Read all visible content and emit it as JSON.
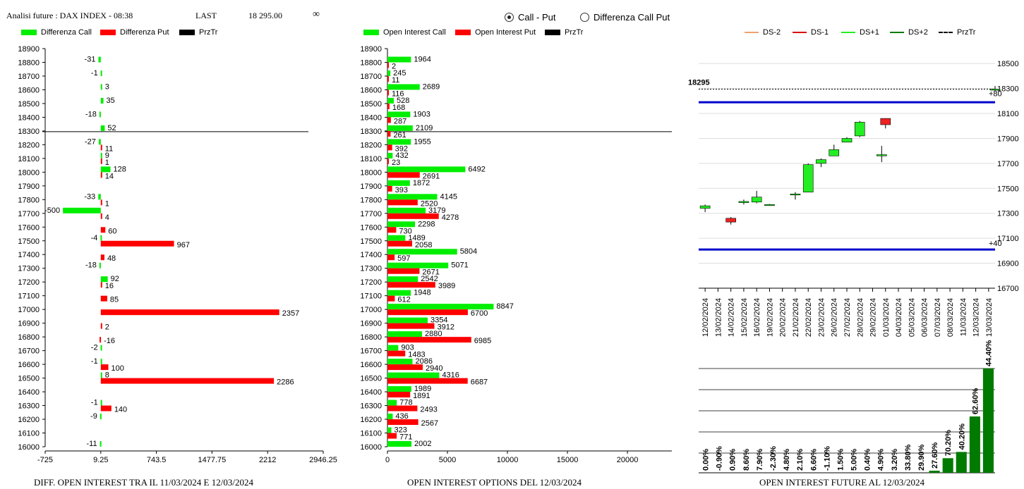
{
  "header": {
    "title": "Analisi future : DAX INDEX - 08:38",
    "last_label": "LAST",
    "last_value": "18 295.00",
    "infinity_symbol": "∞"
  },
  "view_toggle": {
    "options": [
      "Call - Put",
      "Differenza Call Put"
    ],
    "selected": "Call - Put"
  },
  "colors": {
    "green": "#00ee00",
    "red": "#ff0000",
    "black": "#000000",
    "blue": "#0000cc",
    "dark_green": "#007a00",
    "orange": "#f0a070"
  },
  "footers": {
    "left": "DIFF. OPEN INTEREST TRA IL 11/03/2024 E 12/03/2024",
    "middle": "OPEN INTEREST OPTIONS DEL 12/03/2024",
    "right": "OPEN INTEREST FUTURE AL 12/03/2024"
  },
  "chart_data": [
    {
      "id": "diff",
      "type": "bar",
      "orientation": "horizontal",
      "legend": [
        "Differenza Call",
        "Differenza Put",
        "PrzTr"
      ],
      "strikes": [
        18900,
        18800,
        18700,
        18600,
        18500,
        18400,
        18300,
        18200,
        18100,
        18000,
        17900,
        17800,
        17700,
        17600,
        17500,
        17400,
        17300,
        17200,
        17100,
        17000,
        16900,
        16800,
        16700,
        16600,
        16500,
        16400,
        16300,
        16200,
        16100,
        16000
      ],
      "series": [
        {
          "name": "Differenza Call",
          "values": [
            null,
            -31,
            -1,
            3,
            35,
            -18,
            52,
            -27,
            9,
            128,
            null,
            -33,
            -500,
            null,
            -4,
            null,
            -18,
            92,
            null,
            null,
            null,
            null,
            -2,
            -1,
            8,
            null,
            -1,
            -9,
            null,
            -11
          ]
        },
        {
          "name": "Differenza Put",
          "values": [
            null,
            null,
            null,
            null,
            null,
            null,
            null,
            11,
            1,
            14,
            null,
            1,
            4,
            60,
            967,
            48,
            null,
            16,
            85,
            2357,
            2,
            -16,
            null,
            100,
            2286,
            null,
            140,
            null,
            null,
            null
          ]
        }
      ],
      "price_line": 18295,
      "x_ticks": [
        "-725",
        "9.25",
        "743.5",
        "1477.75",
        "2212",
        "2946.25"
      ],
      "xlim": [
        -725,
        2946.25
      ]
    },
    {
      "id": "oi",
      "type": "bar",
      "orientation": "horizontal",
      "legend": [
        "Open Interest Call",
        "Open Interest Put",
        "PrzTr"
      ],
      "strikes": [
        18900,
        18800,
        18700,
        18600,
        18500,
        18400,
        18300,
        18200,
        18100,
        18000,
        17900,
        17800,
        17700,
        17600,
        17500,
        17400,
        17300,
        17200,
        17100,
        17000,
        16900,
        16800,
        16700,
        16600,
        16500,
        16400,
        16300,
        16200,
        16100,
        16000
      ],
      "series": [
        {
          "name": "Open Interest Call",
          "values": [
            null,
            1964,
            245,
            2689,
            528,
            1903,
            2109,
            1955,
            432,
            6492,
            1872,
            4145,
            3179,
            2298,
            1489,
            5804,
            5071,
            2542,
            1948,
            8847,
            3354,
            2880,
            903,
            2086,
            4316,
            1989,
            778,
            436,
            323,
            2002
          ]
        },
        {
          "name": "Open Interest Put",
          "values": [
            null,
            2,
            11,
            116,
            168,
            287,
            261,
            392,
            23,
            2691,
            393,
            2520,
            4278,
            730,
            2058,
            597,
            2671,
            3989,
            612,
            6700,
            3912,
            6985,
            1483,
            2940,
            6687,
            1891,
            2493,
            2567,
            771,
            null
          ]
        }
      ],
      "price_line": 18295,
      "x_ticks": [
        "0",
        "5000",
        "10000",
        "15000",
        "20000"
      ],
      "xlim": [
        0,
        23700
      ]
    },
    {
      "id": "candles",
      "type": "candlestick",
      "legend": [
        "DS-2",
        "DS-1",
        "DS+1",
        "DS+2",
        "PrzTr"
      ],
      "dates": [
        "12/02/2024",
        "13/02/2024",
        "14/02/2024",
        "15/02/2024",
        "16/02/2024",
        "19/02/2024",
        "20/02/2024",
        "21/02/2024",
        "22/02/2024",
        "23/02/2024",
        "26/02/2024",
        "27/02/2024",
        "28/02/2024",
        "29/02/2024",
        "01/03/2024",
        "04/03/2024",
        "05/03/2024",
        "06/03/2024",
        "07/03/2024",
        "08/03/2024",
        "11/03/2024",
        "12/03/2024",
        "13/03/2024"
      ],
      "ohlc": [
        [
          17340,
          17370,
          17310,
          17360
        ],
        [
          null,
          null,
          null,
          null
        ],
        [
          17260,
          17270,
          17210,
          17230
        ],
        [
          17385,
          17410,
          17370,
          17395
        ],
        [
          17390,
          17480,
          17380,
          17430
        ],
        [
          17370,
          17375,
          17365,
          17370
        ],
        [
          null,
          null,
          null,
          null
        ],
        [
          17450,
          17470,
          17410,
          17455
        ],
        [
          17470,
          17700,
          17470,
          17690
        ],
        [
          17700,
          17740,
          17670,
          17730
        ],
        [
          17760,
          17850,
          17760,
          17810
        ],
        [
          17870,
          17910,
          17870,
          17900
        ],
        [
          17920,
          18040,
          17910,
          18030
        ],
        [
          17760,
          17840,
          17710,
          17770
        ],
        [
          18060,
          18060,
          17980,
          18010
        ],
        [
          null,
          null,
          null,
          null
        ],
        [
          null,
          null,
          null,
          null
        ],
        [
          null,
          null,
          null,
          null
        ],
        [
          null,
          null,
          null,
          null
        ],
        [
          null,
          null,
          null,
          null
        ],
        [
          null,
          null,
          null,
          null
        ],
        [
          null,
          null,
          null,
          null
        ],
        [
          18295,
          18320,
          18280,
          18295
        ]
      ],
      "candle_slots": [
        0,
        0.6,
        2,
        3,
        4,
        5,
        6,
        7,
        8,
        9,
        10,
        11,
        12,
        13.7,
        14,
        15,
        16,
        17,
        18,
        19,
        20,
        21,
        22.5
      ],
      "price_label": "18295",
      "price_line": 18295,
      "upper_level": 18190,
      "lower_level": 17010,
      "upper_label": "+80",
      "lower_label": "+40",
      "y_ticks": [
        "18500",
        "18300",
        "18100",
        "17900",
        "17700",
        "17500",
        "17300",
        "17100",
        "16900",
        "16700"
      ],
      "ylim": [
        16700,
        18580
      ]
    },
    {
      "id": "oi_change",
      "type": "bar",
      "labels": [
        "0.00%",
        "-0.90%",
        "0.90%",
        "8.60%",
        "7.90%",
        "-2.30%",
        "4.80%",
        "2.10%",
        "6.60%",
        "-1.10%",
        "1.50%",
        "5.00%",
        "0.40%",
        "4.90%",
        "3.20%",
        "33.80%",
        "29.90%",
        "27.60%",
        "70.20%",
        "40.20%",
        "62.60%",
        "44.40%"
      ],
      "heights": [
        0,
        0,
        0,
        0,
        0,
        0,
        0,
        0,
        0,
        0,
        0,
        0,
        0,
        0,
        0,
        0,
        0,
        0.02,
        0.14,
        0.2,
        0.54,
        1.0
      ]
    }
  ]
}
